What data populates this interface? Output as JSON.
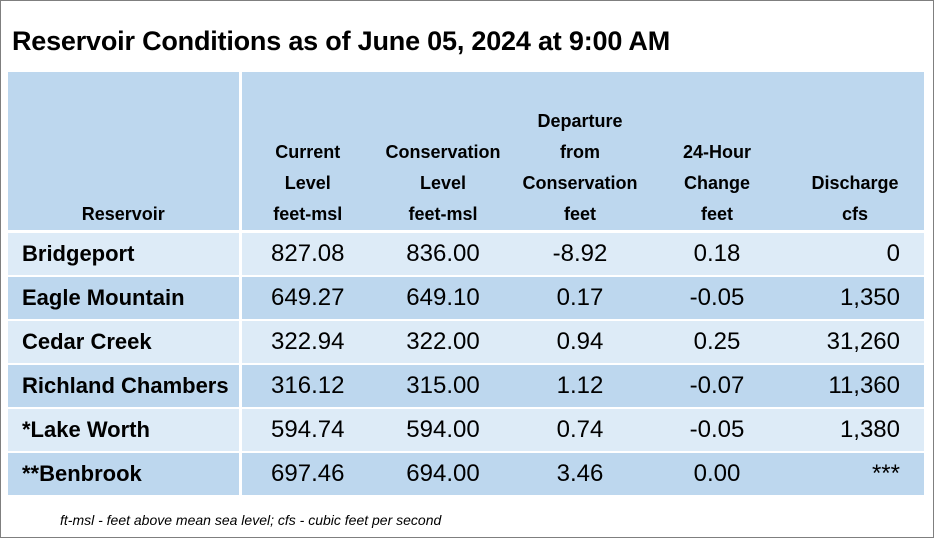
{
  "title": "Reservoir Conditions as of June 05, 2024 at 9:00 AM",
  "columns": [
    {
      "label_lines": [
        "Reservoir"
      ],
      "unit": ""
    },
    {
      "label_lines": [
        "Current",
        "Level"
      ],
      "unit": "feet-msl"
    },
    {
      "label_lines": [
        "Conservation",
        "Level"
      ],
      "unit": "feet-msl"
    },
    {
      "label_lines": [
        "Departure",
        "from",
        "Conservation"
      ],
      "unit": "feet"
    },
    {
      "label_lines": [
        "24-Hour",
        "Change"
      ],
      "unit": "feet"
    },
    {
      "label_lines": [
        "Discharge"
      ],
      "unit": "cfs"
    }
  ],
  "rows": [
    {
      "reservoir": "Bridgeport",
      "current": "827.08",
      "conservation": "836.00",
      "departure": "-8.92",
      "change": "0.18",
      "discharge": "0"
    },
    {
      "reservoir": "Eagle Mountain",
      "current": "649.27",
      "conservation": "649.10",
      "departure": "0.17",
      "change": "-0.05",
      "discharge": "1,350"
    },
    {
      "reservoir": "Cedar Creek",
      "current": "322.94",
      "conservation": "322.00",
      "departure": "0.94",
      "change": "0.25",
      "discharge": "31,260"
    },
    {
      "reservoir": "Richland Chambers",
      "current": "316.12",
      "conservation": "315.00",
      "departure": "1.12",
      "change": "-0.07",
      "discharge": "11,360"
    },
    {
      "reservoir": "*Lake Worth",
      "current": "594.74",
      "conservation": "594.00",
      "departure": "0.74",
      "change": "-0.05",
      "discharge": "1,380"
    },
    {
      "reservoir": "**Benbrook",
      "current": "697.46",
      "conservation": "694.00",
      "departure": "3.46",
      "change": "0.00",
      "discharge": "***"
    }
  ],
  "footnote": "ft-msl - feet above mean sea level; cfs - cubic feet per second",
  "colors": {
    "header_bg": "#bdd7ee",
    "row_light": "#ddebf7",
    "row_dark": "#bdd7ee"
  }
}
